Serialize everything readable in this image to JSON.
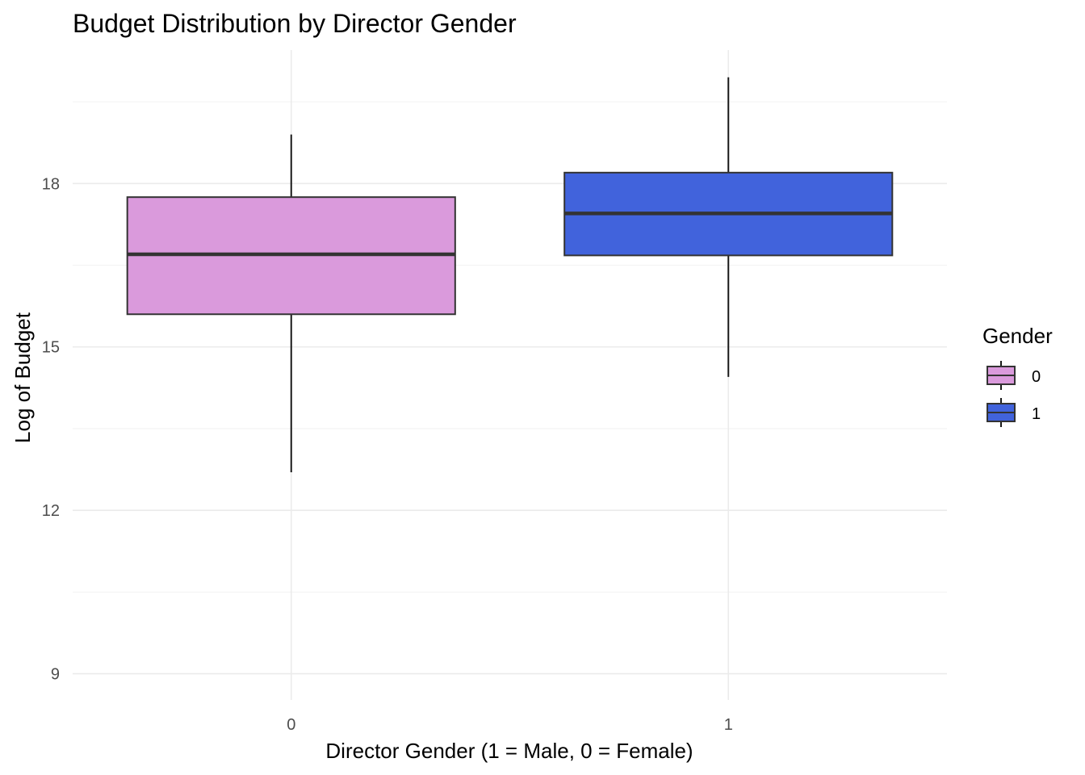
{
  "chart_data": {
    "type": "boxplot",
    "title": "Budget Distribution by Director Gender",
    "xlabel": "Director Gender (1 = Male, 0 = Female)",
    "ylabel": "Log of Budget",
    "categories": [
      "0",
      "1"
    ],
    "boxes": [
      {
        "category": "0",
        "min": 12.7,
        "q1": 15.6,
        "median": 16.7,
        "q3": 17.75,
        "max": 18.9,
        "color": "#DA9ADC"
      },
      {
        "category": "1",
        "min": 14.45,
        "q1": 16.68,
        "median": 17.45,
        "q3": 18.2,
        "max": 19.95,
        "color": "#4163DC"
      }
    ],
    "yticks": [
      "9",
      "12",
      "15",
      "18"
    ],
    "ylim": [
      8.52,
      20.45
    ],
    "grid": true,
    "legend": {
      "title": "Gender",
      "position": "right",
      "entries": [
        {
          "label": "0",
          "color": "#DA9ADC"
        },
        {
          "label": "1",
          "color": "#4163DC"
        }
      ]
    }
  }
}
